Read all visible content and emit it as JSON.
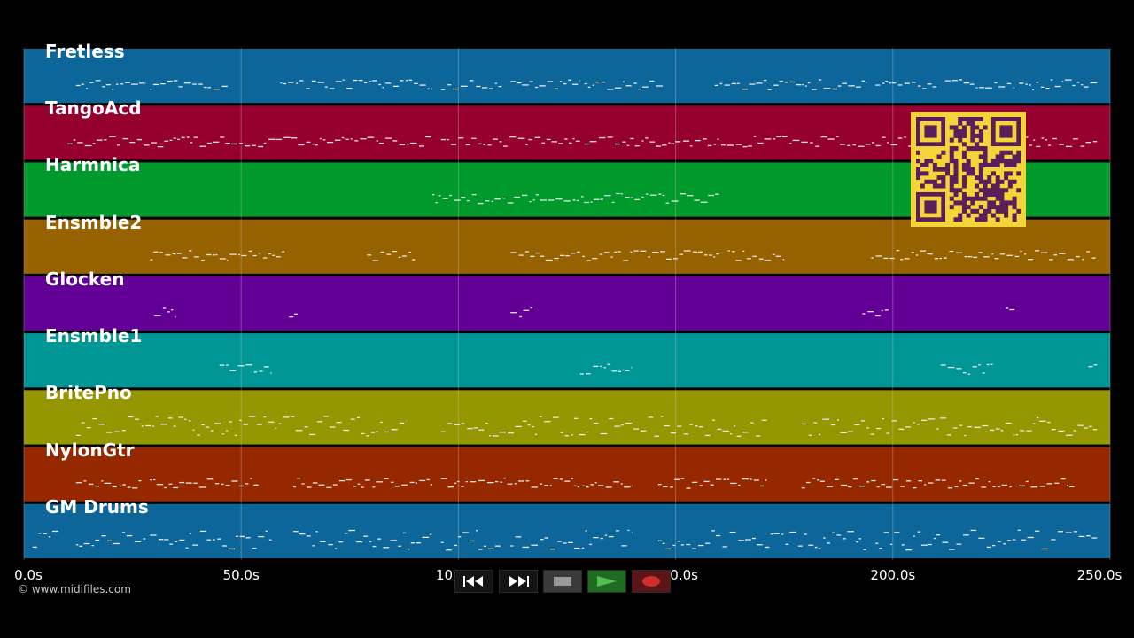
{
  "timeline": {
    "duration_seconds": 250,
    "tick_labels": [
      "0.0s",
      "50.0s",
      "100.0s",
      "150.0s",
      "200.0s",
      "250.0s"
    ],
    "tick_values": [
      0,
      50,
      100,
      150,
      200,
      250
    ]
  },
  "tracks": [
    {
      "name": "Fretless",
      "color": "#0c6699"
    },
    {
      "name": "TangoAcd",
      "color": "#950030"
    },
    {
      "name": "Harmnica",
      "color": "#00992b"
    },
    {
      "name": "Ensmble2",
      "color": "#966200"
    },
    {
      "name": "Glocken",
      "color": "#620096"
    },
    {
      "name": "Ensmble1",
      "color": "#009696"
    },
    {
      "name": "BritePno",
      "color": "#969600"
    },
    {
      "name": "NylonGtr",
      "color": "#962800"
    },
    {
      "name": "GM Drums",
      "color": "#0c6699"
    }
  ],
  "copyright": "© www.midifiles.com",
  "transport": {
    "rewind_icon": "rewind-icon",
    "fast_forward_icon": "fast-forward-icon",
    "stop_icon": "stop-icon",
    "play_icon": "play-icon",
    "record_icon": "record-icon",
    "play_color": "#2e8b2e",
    "record_color": "#d22e2e"
  },
  "overlay": {
    "qr_icon": "qr-code-icon",
    "qr_color": "#f5d43a"
  }
}
